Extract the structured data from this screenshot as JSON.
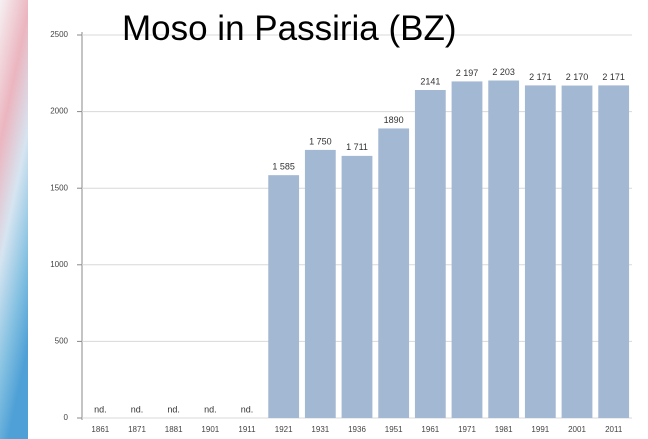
{
  "chart_data": {
    "type": "bar",
    "title": "Moso in Passiria (BZ)",
    "categories": [
      "1861",
      "1871",
      "1881",
      "1901",
      "1911",
      "1921",
      "1931",
      "1936",
      "1951",
      "1961",
      "1971",
      "1981",
      "1991",
      "2001",
      "2011"
    ],
    "values": [
      null,
      null,
      null,
      null,
      null,
      1585,
      1750,
      1711,
      1890,
      2141,
      2197,
      2203,
      2171,
      2170,
      2171
    ],
    "value_labels": [
      "nd.",
      "nd.",
      "nd.",
      "nd.",
      "nd.",
      "1 585",
      "1 750",
      "1 711",
      "1890",
      "2141",
      "2 197",
      "2 203",
      "2 171",
      "2 170",
      "2 171"
    ],
    "color": "#a3b8d3",
    "ylim": [
      0,
      2500
    ],
    "yticks": [
      0,
      500,
      1000,
      1500,
      2000,
      2500
    ],
    "grid": true
  }
}
